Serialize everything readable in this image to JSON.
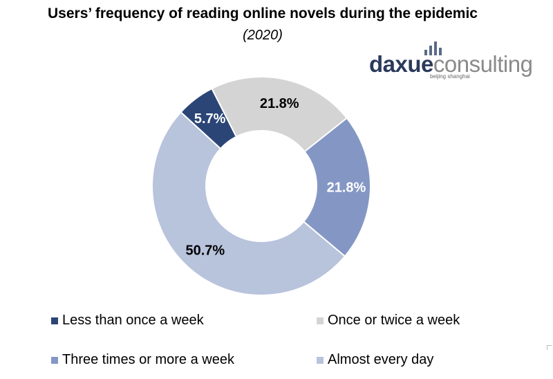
{
  "chart_data": {
    "type": "pie",
    "title": "Users’ frequency of reading online novels during the epidemic",
    "subtitle": "(2020)",
    "donut": true,
    "slices": [
      {
        "label": "Once or twice a week",
        "value": 21.8,
        "value_label": "21.8%",
        "color": "#d4d4d4",
        "label_color": "#000000"
      },
      {
        "label": "Three times or more a week",
        "value": 21.8,
        "value_label": "21.8%",
        "color": "#8497c4",
        "label_color": "#ffffff"
      },
      {
        "label": "Almost every day",
        "value": 50.7,
        "value_label": "50.7%",
        "color": "#b8c3dc",
        "label_color": "#000000"
      },
      {
        "label": "Less than once a week",
        "value": 5.7,
        "value_label": "5.7%",
        "color": "#2b4576",
        "label_color": "#ffffff"
      }
    ],
    "legend": {
      "position": "bottom",
      "items": [
        {
          "label": "Less than once a week",
          "color": "#2b4576"
        },
        {
          "label": "Once or twice a week",
          "color": "#d4d4d4"
        },
        {
          "label": "Three times or more a week",
          "color": "#8497c4"
        },
        {
          "label": "Almost every day",
          "color": "#b8c3dc"
        }
      ]
    }
  },
  "logo": {
    "part1": "daxue",
    "part2": "consulting",
    "sub": "beijing shanghai"
  }
}
